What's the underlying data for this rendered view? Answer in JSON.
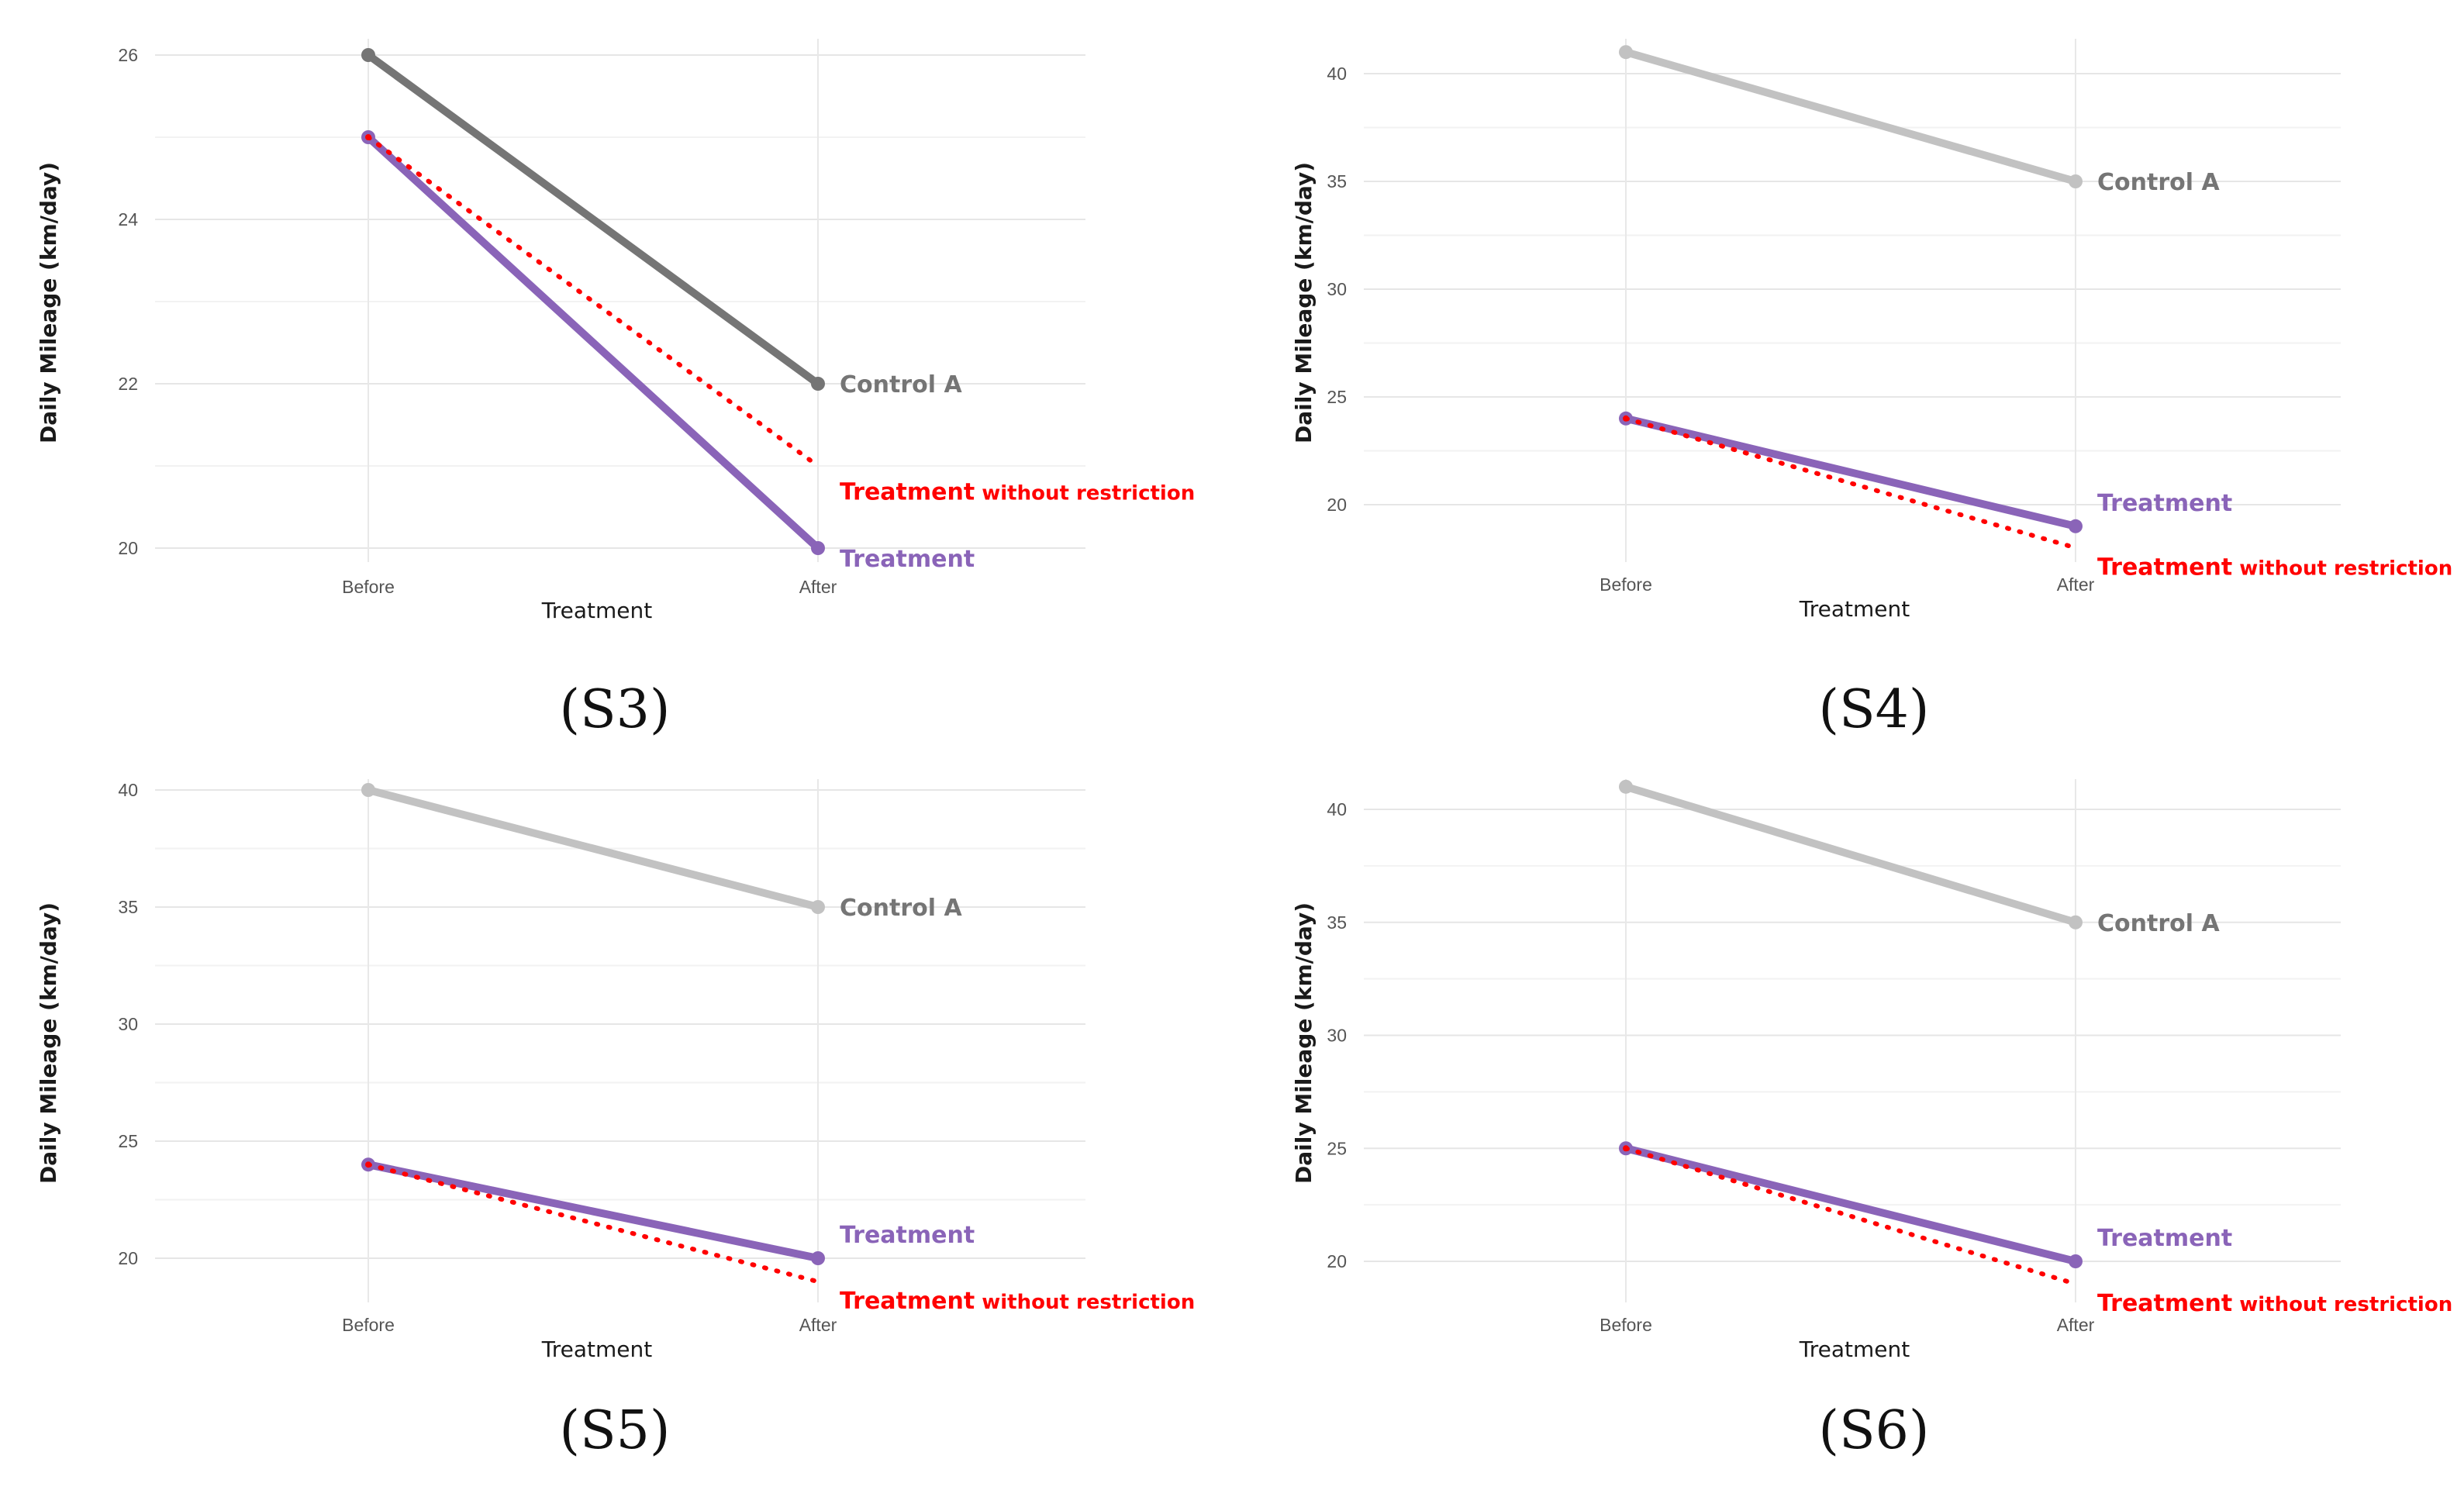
{
  "chart_data": [
    {
      "type": "line",
      "panel_label": "(S3)",
      "xlabel": "Treatment",
      "ylabel": "Daily Mileage (km/day)",
      "categories": [
        "Before",
        "After"
      ],
      "ylim": [
        19.5,
        26.1
      ],
      "yticks": [
        20,
        22,
        24,
        26
      ],
      "yminor": [
        21,
        23,
        25
      ],
      "label_order": [
        "Control A",
        "Treatment without restriction",
        "Treatment"
      ],
      "series": [
        {
          "name": "Control A",
          "label": "Control A",
          "label_suffix": "",
          "values": [
            26,
            22
          ],
          "color": "#757575",
          "style": "solid"
        },
        {
          "name": "Treatment without restriction",
          "label": "Treatment",
          "label_suffix": "without restriction",
          "values": [
            25,
            21
          ],
          "color": "#ff0000",
          "style": "dotted"
        },
        {
          "name": "Treatment",
          "label": "Treatment",
          "label_suffix": "",
          "values": [
            25,
            20
          ],
          "color": "#8a64b8",
          "style": "solid"
        }
      ]
    },
    {
      "type": "line",
      "panel_label": "(S4)",
      "xlabel": "Treatment",
      "ylabel": "Daily Mileage (km/day)",
      "categories": [
        "Before",
        "After"
      ],
      "ylim": [
        17.5,
        41.5
      ],
      "yticks": [
        20,
        25,
        30,
        35,
        40
      ],
      "yminor": [
        22.5,
        27.5,
        32.5,
        37.5
      ],
      "label_order": [
        "Control A",
        "Treatment",
        "Treatment without restriction"
      ],
      "series": [
        {
          "name": "Control A",
          "label": "Control A",
          "label_suffix": "",
          "values": [
            41,
            35
          ],
          "color": "#c2c2c2",
          "style": "solid"
        },
        {
          "name": "Treatment without restriction",
          "label": "Treatment",
          "label_suffix": "without restriction",
          "values": [
            24,
            18
          ],
          "color": "#ff0000",
          "style": "dotted"
        },
        {
          "name": "Treatment",
          "label": "Treatment",
          "label_suffix": "",
          "values": [
            24,
            19
          ],
          "color": "#8a64b8",
          "style": "solid"
        }
      ]
    },
    {
      "type": "line",
      "panel_label": "(S5)",
      "xlabel": "Treatment",
      "ylabel": "Daily Mileage (km/day)",
      "categories": [
        "Before",
        "After"
      ],
      "ylim": [
        18.5,
        40.5
      ],
      "yticks": [
        20,
        25,
        30,
        35,
        40
      ],
      "yminor": [
        22.5,
        27.5,
        32.5,
        37.5
      ],
      "label_order": [
        "Control A",
        "Treatment",
        "Treatment without restriction"
      ],
      "series": [
        {
          "name": "Control A",
          "label": "Control A",
          "label_suffix": "",
          "values": [
            40,
            35
          ],
          "color": "#c2c2c2",
          "style": "solid"
        },
        {
          "name": "Treatment without restriction",
          "label": "Treatment",
          "label_suffix": "without restriction",
          "values": [
            24,
            19
          ],
          "color": "#ff0000",
          "style": "dotted"
        },
        {
          "name": "Treatment",
          "label": "Treatment",
          "label_suffix": "",
          "values": [
            24,
            20
          ],
          "color": "#8a64b8",
          "style": "solid"
        }
      ]
    },
    {
      "type": "line",
      "panel_label": "(S6)",
      "xlabel": "Treatment",
      "ylabel": "Daily Mileage (km/day)",
      "categories": [
        "Before",
        "After"
      ],
      "ylim": [
        18.5,
        41.5
      ],
      "yticks": [
        20,
        25,
        30,
        35,
        40
      ],
      "yminor": [
        22.5,
        27.5,
        32.5,
        37.5
      ],
      "label_order": [
        "Control A",
        "Treatment",
        "Treatment without restriction"
      ],
      "series": [
        {
          "name": "Control A",
          "label": "Control A",
          "label_suffix": "",
          "values": [
            41,
            35
          ],
          "color": "#c2c2c2",
          "style": "solid"
        },
        {
          "name": "Treatment without restriction",
          "label": "Treatment",
          "label_suffix": "without restriction",
          "values": [
            25,
            19
          ],
          "color": "#ff0000",
          "style": "dotted"
        },
        {
          "name": "Treatment",
          "label": "Treatment",
          "label_suffix": "",
          "values": [
            25,
            20
          ],
          "color": "#8a64b8",
          "style": "solid"
        }
      ]
    }
  ]
}
